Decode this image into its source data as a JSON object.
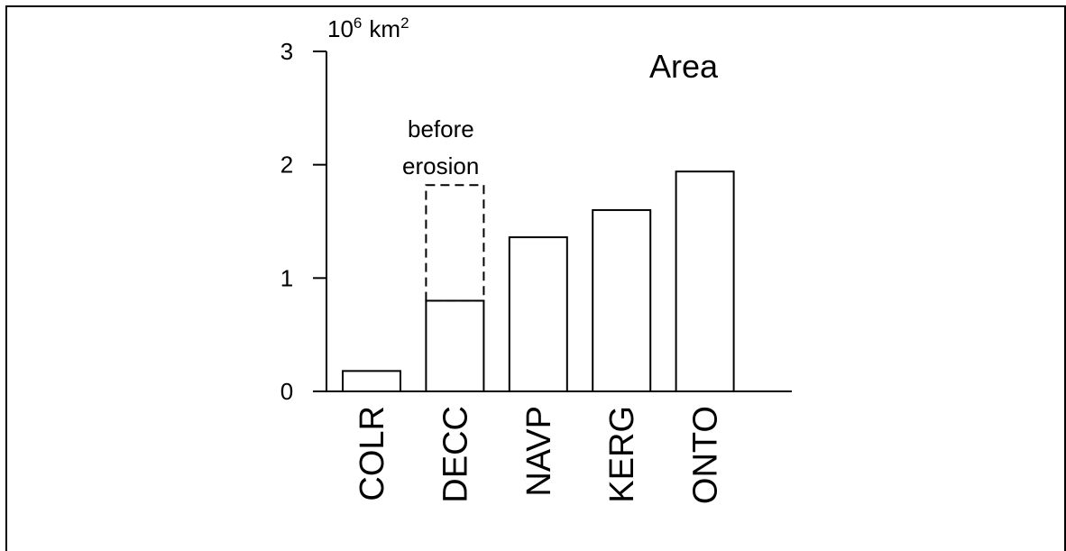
{
  "chart_data": {
    "type": "bar",
    "title": "Area",
    "unit_label": {
      "base": "10",
      "exp": "6",
      "unit": "km",
      "unit_exp": "2"
    },
    "categories": [
      "COLR",
      "DECC",
      "NAVP",
      "KERG",
      "ONTO"
    ],
    "values": [
      0.18,
      0.8,
      1.36,
      1.6,
      1.94
    ],
    "overlay": {
      "category": "DECC",
      "value": 1.82,
      "style": "dashed",
      "label_line1": "before",
      "label_line2": "erosion"
    },
    "ylim": [
      0,
      3
    ],
    "yticks": [
      "0",
      "1",
      "2",
      "3"
    ],
    "grid": false,
    "legend": "none"
  }
}
